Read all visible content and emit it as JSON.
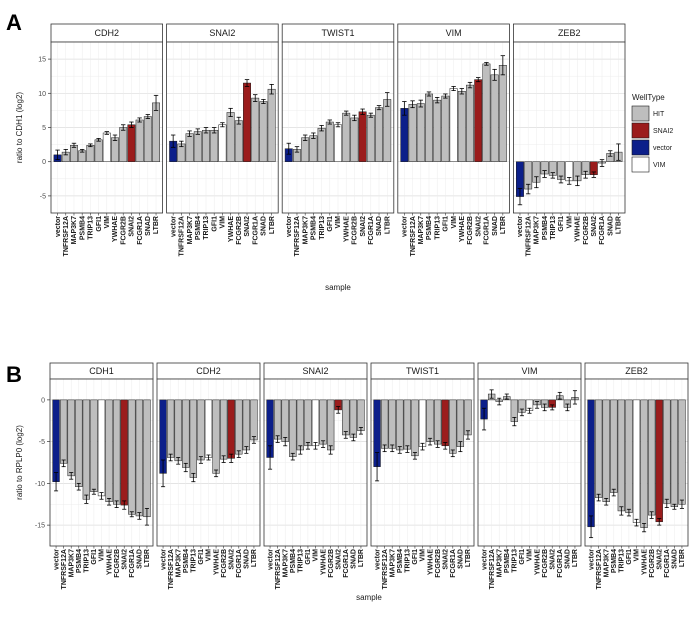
{
  "chart_data": [
    {
      "type": "bar",
      "panel_label": "A",
      "xlabel": "sample",
      "ylabel": "ratio to CDH1 (log2)",
      "ylim": [
        -7.5,
        17.5
      ],
      "yticks": [
        -5,
        0,
        5,
        10,
        15
      ],
      "categories": [
        "vector",
        "TNFRSF12A",
        "MAP3K7",
        "PSMB4",
        "TRIP13",
        "GFI1",
        "VIM",
        "YWHAE",
        "FCGR2B",
        "SNAI2",
        "FCGR1A",
        "SNAD",
        "LTBR"
      ],
      "colors": {
        "HIT": "#bebebe",
        "SNAI2": "#9b1c1c",
        "vector": "#0c1f8a",
        "VIM": "#ffffff"
      },
      "legend": {
        "title": "WellType",
        "entries": [
          "HIT",
          "SNAI2",
          "vector",
          "VIM"
        ],
        "position": "right"
      },
      "facets": [
        {
          "name": "CDH2",
          "values": [
            1.0,
            1.4,
            2.4,
            1.6,
            2.4,
            3.2,
            4.2,
            3.5,
            5.0,
            5.4,
            6.1,
            6.6,
            8.6
          ],
          "errors": [
            0.7,
            0.4,
            0.3,
            0.2,
            0.2,
            0.2,
            0.2,
            0.4,
            0.4,
            0.4,
            0.3,
            0.3,
            1.1
          ],
          "types": [
            "vector",
            "HIT",
            "HIT",
            "HIT",
            "HIT",
            "HIT",
            "VIM",
            "HIT",
            "HIT",
            "SNAI2",
            "HIT",
            "HIT",
            "HIT"
          ]
        },
        {
          "name": "SNAI2",
          "values": [
            3.0,
            2.6,
            4.1,
            4.4,
            4.6,
            4.6,
            5.4,
            7.2,
            6.0,
            11.5,
            9.3,
            8.8,
            10.6
          ],
          "errors": [
            0.9,
            0.4,
            0.4,
            0.4,
            0.4,
            0.4,
            0.3,
            0.6,
            0.5,
            0.5,
            0.5,
            0.3,
            0.7
          ],
          "types": [
            "vector",
            "HIT",
            "HIT",
            "HIT",
            "HIT",
            "HIT",
            "VIM",
            "HIT",
            "HIT",
            "SNAI2",
            "HIT",
            "HIT",
            "HIT"
          ]
        },
        {
          "name": "TWIST1",
          "values": [
            1.9,
            1.8,
            3.5,
            3.8,
            4.9,
            5.8,
            5.4,
            7.1,
            6.4,
            7.3,
            6.8,
            7.9,
            9.1
          ],
          "errors": [
            0.8,
            0.4,
            0.4,
            0.4,
            0.4,
            0.3,
            0.3,
            0.3,
            0.4,
            0.4,
            0.3,
            0.3,
            1.0
          ],
          "types": [
            "vector",
            "HIT",
            "HIT",
            "HIT",
            "HIT",
            "HIT",
            "VIM",
            "HIT",
            "HIT",
            "SNAI2",
            "HIT",
            "HIT",
            "HIT"
          ]
        },
        {
          "name": "VIM",
          "values": [
            7.8,
            8.4,
            8.5,
            9.9,
            9.0,
            9.6,
            10.7,
            10.3,
            11.2,
            12.0,
            14.3,
            12.7,
            14.1
          ],
          "errors": [
            1.0,
            0.5,
            0.5,
            0.3,
            0.4,
            0.3,
            0.3,
            0.4,
            0.4,
            0.3,
            0.2,
            0.8,
            1.4
          ],
          "types": [
            "vector",
            "HIT",
            "HIT",
            "HIT",
            "HIT",
            "HIT",
            "VIM",
            "HIT",
            "HIT",
            "SNAI2",
            "HIT",
            "HIT",
            "HIT"
          ]
        },
        {
          "name": "ZEB2",
          "values": [
            -5.1,
            -4.0,
            -3.0,
            -1.8,
            -2.0,
            -2.6,
            -2.8,
            -2.8,
            -1.9,
            -1.9,
            -0.2,
            1.2,
            1.4
          ],
          "errors": [
            1.2,
            0.7,
            0.8,
            0.5,
            0.4,
            0.5,
            0.5,
            0.7,
            0.5,
            0.4,
            0.5,
            0.4,
            1.2
          ],
          "types": [
            "vector",
            "HIT",
            "HIT",
            "HIT",
            "HIT",
            "HIT",
            "VIM",
            "HIT",
            "HIT",
            "SNAI2",
            "HIT",
            "HIT",
            "HIT"
          ]
        }
      ]
    },
    {
      "type": "bar",
      "panel_label": "B",
      "xlabel": "sample",
      "ylabel": "ratio to RPLP0 (log2)",
      "ylim": [
        -17.5,
        2.5
      ],
      "yticks": [
        -15,
        -10,
        -5,
        0
      ],
      "categories": [
        "vector",
        "TNFRSF12A",
        "MAP3K7",
        "PSMB4",
        "TRIP13",
        "GFI1",
        "VIM",
        "YWHAE",
        "FCGR2B",
        "SNAI2",
        "FCGR1A",
        "SNAD",
        "LTBR"
      ],
      "colors": {
        "HIT": "#bebebe",
        "SNAI2": "#9b1c1c",
        "vector": "#0c1f8a",
        "VIM": "#ffffff"
      },
      "facets": [
        {
          "name": "CDH1",
          "values": [
            -9.8,
            -7.6,
            -9.1,
            -10.4,
            -11.9,
            -11.0,
            -11.5,
            -12.2,
            -12.5,
            -12.6,
            -13.7,
            -13.9,
            -14.0
          ],
          "errors": [
            1.1,
            0.4,
            0.4,
            0.4,
            0.5,
            0.3,
            0.4,
            0.4,
            0.4,
            0.5,
            0.3,
            0.4,
            1.0
          ],
          "types": [
            "vector",
            "HIT",
            "HIT",
            "HIT",
            "HIT",
            "HIT",
            "VIM",
            "HIT",
            "HIT",
            "SNAI2",
            "HIT",
            "HIT",
            "HIT"
          ]
        },
        {
          "name": "CDH2",
          "values": [
            -8.8,
            -6.9,
            -7.3,
            -8.1,
            -9.3,
            -7.2,
            -6.9,
            -8.8,
            -7.1,
            -7.0,
            -6.5,
            -6.0,
            -4.8
          ],
          "errors": [
            1.6,
            0.4,
            0.4,
            0.5,
            0.5,
            0.4,
            0.3,
            0.4,
            0.4,
            0.5,
            0.4,
            0.4,
            0.4
          ],
          "types": [
            "vector",
            "HIT",
            "HIT",
            "HIT",
            "HIT",
            "HIT",
            "VIM",
            "HIT",
            "HIT",
            "SNAI2",
            "HIT",
            "HIT",
            "HIT"
          ]
        },
        {
          "name": "SNAI2",
          "values": [
            -6.9,
            -4.7,
            -5.0,
            -6.8,
            -6.0,
            -5.5,
            -5.5,
            -5.3,
            -6.0,
            -1.2,
            -4.2,
            -4.5,
            -3.7
          ],
          "errors": [
            1.4,
            0.4,
            0.5,
            0.4,
            0.5,
            0.4,
            0.4,
            0.4,
            0.5,
            0.4,
            0.4,
            0.4,
            0.4
          ],
          "types": [
            "vector",
            "HIT",
            "HIT",
            "HIT",
            "HIT",
            "HIT",
            "VIM",
            "HIT",
            "HIT",
            "SNAI2",
            "HIT",
            "HIT",
            "HIT"
          ]
        },
        {
          "name": "TWIST1",
          "values": [
            -8.0,
            -5.8,
            -5.8,
            -6.0,
            -5.9,
            -6.7,
            -5.6,
            -5.0,
            -5.3,
            -5.5,
            -6.4,
            -5.6,
            -4.2
          ],
          "errors": [
            1.7,
            0.4,
            0.4,
            0.4,
            0.4,
            0.4,
            0.4,
            0.4,
            0.4,
            0.4,
            0.4,
            0.6,
            0.5
          ],
          "types": [
            "vector",
            "HIT",
            "HIT",
            "HIT",
            "HIT",
            "HIT",
            "VIM",
            "HIT",
            "HIT",
            "SNAI2",
            "HIT",
            "HIT",
            "HIT"
          ]
        },
        {
          "name": "VIM",
          "values": [
            -2.3,
            0.7,
            -0.2,
            0.4,
            -2.6,
            -1.5,
            -1.3,
            -0.6,
            -0.9,
            -0.9,
            0.5,
            -0.9,
            0.3
          ],
          "errors": [
            1.3,
            0.5,
            0.4,
            0.3,
            0.5,
            0.4,
            0.3,
            0.4,
            0.4,
            0.3,
            0.4,
            0.4,
            0.8
          ],
          "types": [
            "vector",
            "HIT",
            "HIT",
            "HIT",
            "HIT",
            "HIT",
            "VIM",
            "HIT",
            "HIT",
            "SNAI2",
            "HIT",
            "HIT",
            "HIT"
          ]
        },
        {
          "name": "ZEB2",
          "values": [
            -15.2,
            -11.7,
            -12.2,
            -11.1,
            -13.3,
            -13.5,
            -14.7,
            -15.3,
            -13.8,
            -14.6,
            -12.4,
            -12.8,
            -12.5
          ],
          "errors": [
            1.3,
            0.4,
            0.4,
            0.4,
            0.5,
            0.4,
            0.4,
            0.5,
            0.4,
            0.4,
            0.5,
            0.3,
            0.5
          ],
          "types": [
            "vector",
            "HIT",
            "HIT",
            "HIT",
            "HIT",
            "HIT",
            "VIM",
            "HIT",
            "HIT",
            "SNAI2",
            "HIT",
            "HIT",
            "HIT"
          ]
        }
      ]
    }
  ]
}
